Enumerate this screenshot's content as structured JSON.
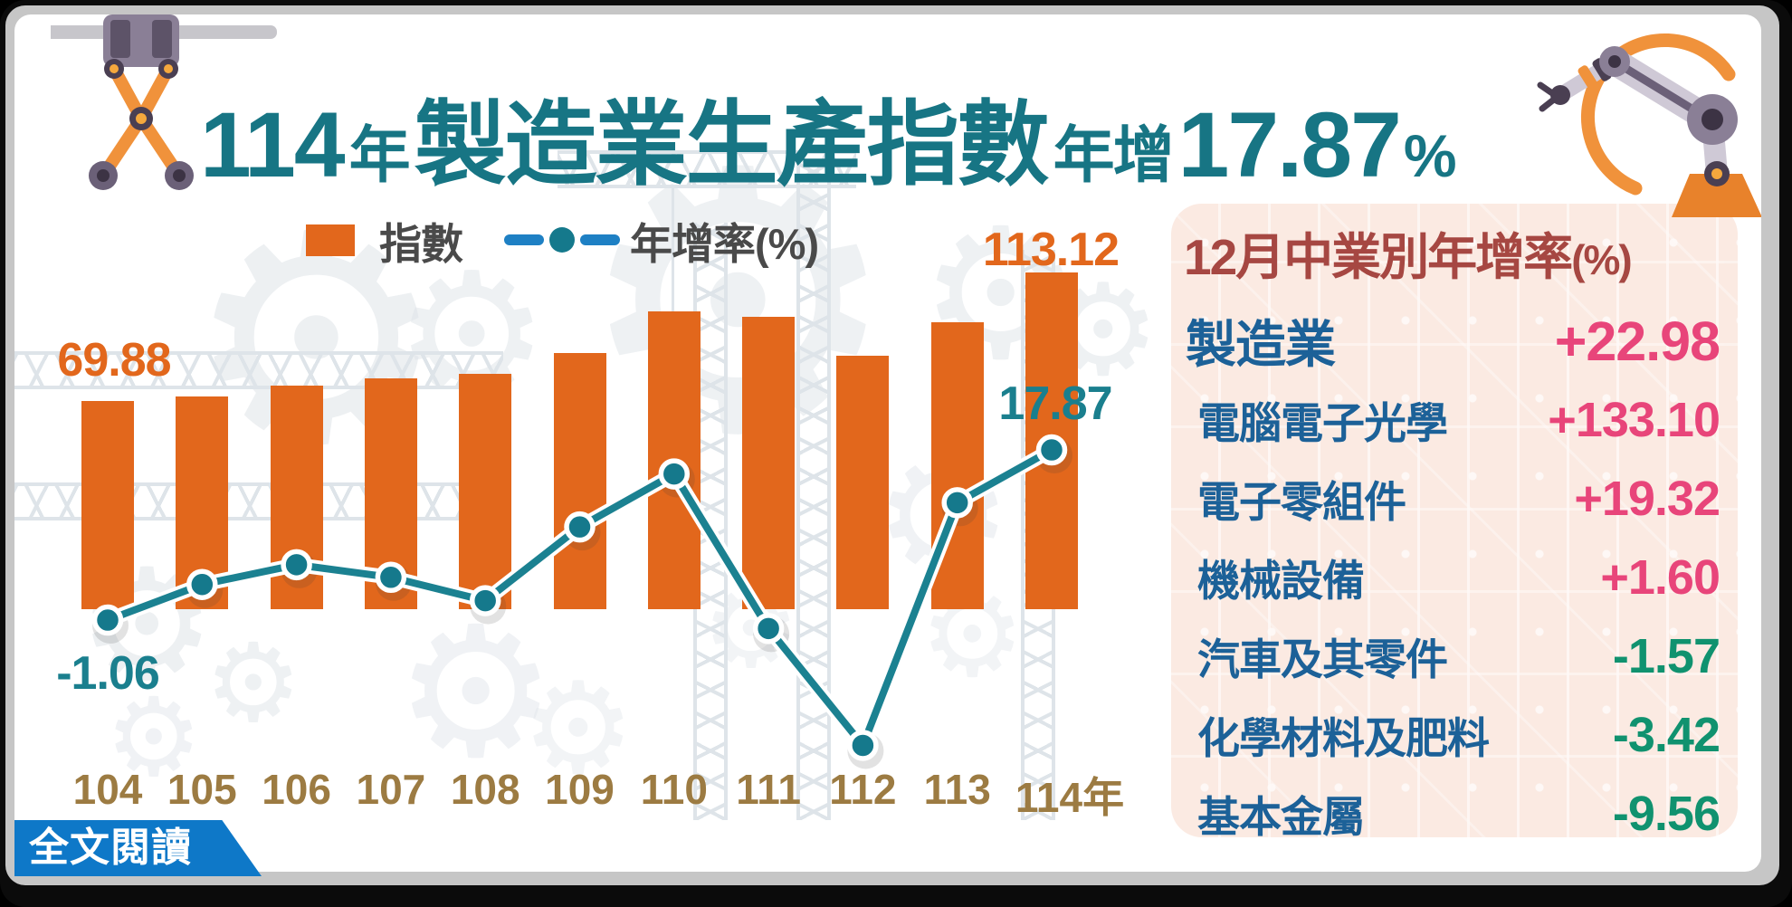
{
  "title": {
    "year": "114",
    "year_unit": "年",
    "subject": "製造業生產指數",
    "growth_prefix": "年增",
    "growth_value": "17.87",
    "percent_sign": "%"
  },
  "legend": {
    "bar_label": "指數",
    "line_label": "年增率(%)"
  },
  "chart_data": {
    "type": "combo-bar-line",
    "categories": [
      "104",
      "105",
      "106",
      "107",
      "108",
      "109",
      "110",
      "111",
      "112",
      "113",
      "114年"
    ],
    "series": [
      {
        "name": "指數",
        "type": "bar",
        "color": "#E2671C",
        "values": [
          69.88,
          71.5,
          75.0,
          77.6,
          78.9,
          86.0,
          100.0,
          98.1,
          85.2,
          96.2,
          113.12
        ]
      },
      {
        "name": "年增率(%)",
        "type": "line",
        "color": "#1B8191",
        "values": [
          -1.06,
          2.9,
          5.1,
          3.7,
          1.1,
          9.3,
          15.2,
          -2.0,
          -15.0,
          12.0,
          17.87
        ]
      }
    ],
    "value_labels": {
      "bar_first": "69.88",
      "bar_last": "113.12",
      "line_first": "-1.06",
      "line_last": "17.87"
    },
    "ylim_bar": [
      0,
      120
    ],
    "ylim_line": [
      -16,
      20
    ],
    "grid": false,
    "legend_position": "top"
  },
  "panel": {
    "title": "12月中業別年增率",
    "title_suffix": "(%)",
    "rows": [
      {
        "label": "製造業",
        "value": "+22.98",
        "emphasis": true
      },
      {
        "label": "電腦電子光學",
        "value": "+133.10"
      },
      {
        "label": "電子零組件",
        "value": "+19.32"
      },
      {
        "label": "機械設備",
        "value": "+1.60"
      },
      {
        "label": "汽車及其零件",
        "value": "-1.57"
      },
      {
        "label": "化學材料及肥料",
        "value": "-3.42"
      },
      {
        "label": "基本金屬",
        "value": "-9.56"
      }
    ]
  },
  "read_more": {
    "label": "全文閱讀"
  },
  "icons": {
    "gear_glyph": "⚙"
  },
  "colors": {
    "title_teal": "#177584",
    "bar_orange": "#E2671C",
    "line_teal": "#1B8191",
    "dot_teal": "#15798C",
    "legend_dash_blue": "#1E80C4",
    "legend_text_gray": "#4A4A4A",
    "axis_label_brown": "#9C7B42",
    "panel_bg_pink": "#FBEAE2",
    "panel_title_maroon": "#A64742",
    "row_label_blue": "#1C6198",
    "value_positive_pink": "#E8457A",
    "value_negative_green": "#10926F",
    "read_more_blue": "#0E78C8"
  }
}
